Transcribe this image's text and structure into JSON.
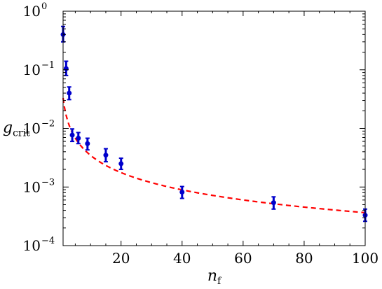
{
  "chart_data": {
    "type": "scatter",
    "title": "",
    "xlabel": {
      "main": "n",
      "sub": "f"
    },
    "ylabel": {
      "main": "g",
      "sub": "crit"
    },
    "xlim": [
      1,
      100
    ],
    "ylim": [
      0.0001,
      1
    ],
    "yscale": "log",
    "grid": false,
    "x_ticks": [
      20,
      40,
      60,
      80,
      100
    ],
    "x_tick_labels": [
      "20",
      "40",
      "60",
      "80",
      "100"
    ],
    "y_ticks": [
      0.0001,
      0.001,
      0.01,
      0.1,
      1
    ],
    "y_tick_labels": [
      {
        "base": "10",
        "exp": "−4"
      },
      {
        "base": "10",
        "exp": "−3"
      },
      {
        "base": "10",
        "exp": "−2"
      },
      {
        "base": "10",
        "exp": "−1"
      },
      {
        "base": "10",
        "exp": "0"
      }
    ],
    "series": [
      {
        "style": "points-with-error-bars",
        "color": "#0000cc",
        "points": [
          {
            "x": 1,
            "y": 0.4,
            "ylo": 0.3,
            "yhi": 0.55
          },
          {
            "x": 2,
            "y": 0.105,
            "ylo": 0.08,
            "yhi": 0.14
          },
          {
            "x": 3,
            "y": 0.04,
            "ylo": 0.031,
            "yhi": 0.051
          },
          {
            "x": 4,
            "y": 0.0077,
            "ylo": 0.006,
            "yhi": 0.0098
          },
          {
            "x": 6,
            "y": 0.0068,
            "ylo": 0.0055,
            "yhi": 0.0085
          },
          {
            "x": 9,
            "y": 0.0055,
            "ylo": 0.0043,
            "yhi": 0.0068
          },
          {
            "x": 15,
            "y": 0.0035,
            "ylo": 0.0027,
            "yhi": 0.0045
          },
          {
            "x": 20,
            "y": 0.0025,
            "ylo": 0.002,
            "yhi": 0.0031
          },
          {
            "x": 40,
            "y": 0.00082,
            "ylo": 0.00064,
            "yhi": 0.00102
          },
          {
            "x": 70,
            "y": 0.00054,
            "ylo": 0.00042,
            "yhi": 0.00068
          },
          {
            "x": 100,
            "y": 0.00033,
            "ylo": 0.00026,
            "yhi": 0.00042
          }
        ]
      },
      {
        "style": "dashed-fit-line",
        "color": "#ff0000",
        "formula": "y = 0.033 / x^0.978",
        "x_range": [
          1,
          100
        ]
      }
    ]
  }
}
